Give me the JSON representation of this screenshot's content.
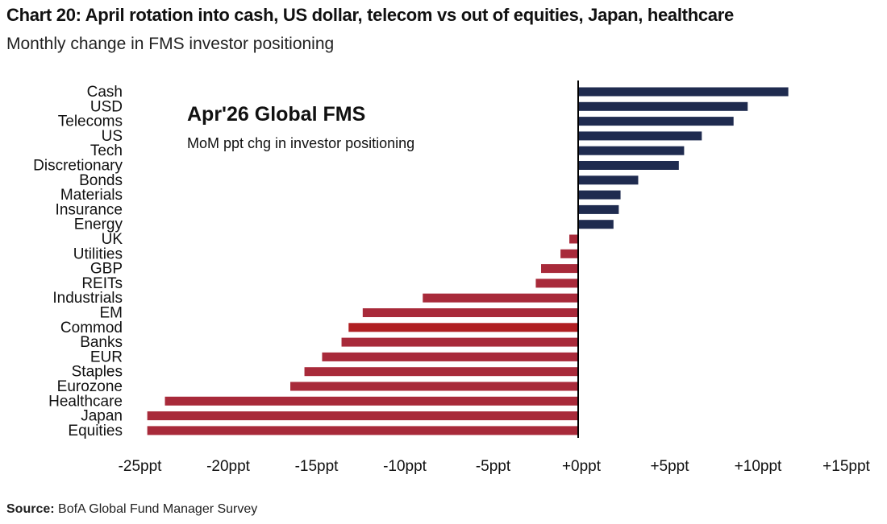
{
  "title": "Chart 20: April rotation into cash, US dollar, telecom vs out of equities, Japan, healthcare",
  "subtitle": "Monthly change in FMS investor positioning",
  "source_label": "Source:",
  "source_text": "BofA Global Fund Manager Survey",
  "chart_data": {
    "type": "bar",
    "orientation": "horizontal",
    "title": "Apr'26 Global FMS",
    "annotation": "MoM ppt chg in investor positioning",
    "categories": [
      "Cash",
      "USD",
      "Telecoms",
      "US",
      "Tech",
      "Discretionary",
      "Bonds",
      "Materials",
      "Insurance",
      "Energy",
      "UK",
      "Utilities",
      "GBP",
      "REITs",
      "Industrials",
      "EM",
      "Commod",
      "Banks",
      "EUR",
      "Staples",
      "Eurozone",
      "Healthcare",
      "Japan",
      "Equities"
    ],
    "values": [
      11.9,
      9.6,
      8.8,
      7.0,
      6.0,
      5.7,
      3.4,
      2.4,
      2.3,
      2.0,
      -0.5,
      -1.0,
      -2.1,
      -2.4,
      -8.8,
      -12.2,
      -13.0,
      -13.4,
      -14.5,
      -15.5,
      -16.3,
      -23.4,
      -24.4,
      -24.4
    ],
    "xlim": [
      -25,
      15
    ],
    "xticks": [
      -25,
      -20,
      -15,
      -10,
      -5,
      0,
      5,
      10,
      15
    ],
    "xtick_labels": [
      "-25ppt",
      "-20ppt",
      "-15ppt",
      "-10ppt",
      "-5ppt",
      "+0ppt",
      "+5ppt",
      "+10ppt",
      "+15ppt"
    ],
    "colors": {
      "positive": "#1f2b4f",
      "negative": "#a82a3a",
      "highlight": "#b01f22"
    },
    "grid": false
  }
}
